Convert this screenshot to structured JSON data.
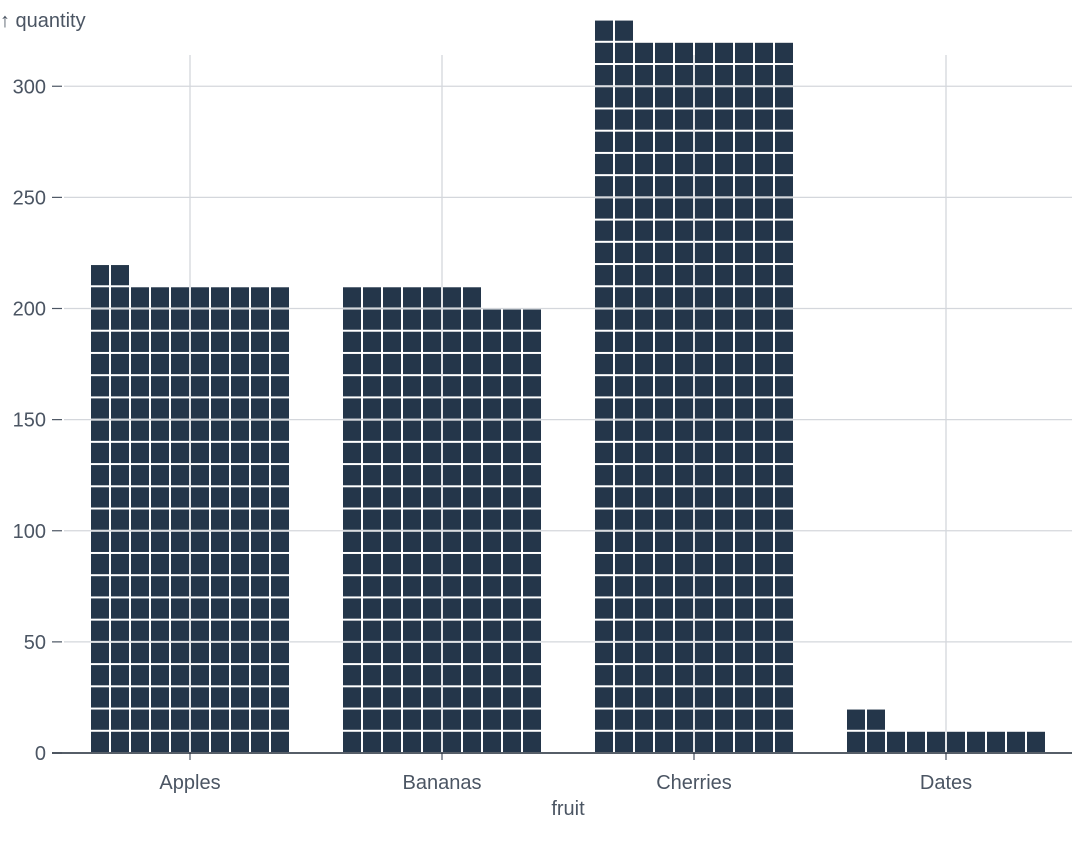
{
  "chart_data": {
    "type": "waffle",
    "xlabel": "fruit",
    "ylabel": "↑ quantity",
    "ylim": [
      0,
      320
    ],
    "yticks": [
      0,
      50,
      100,
      150,
      200,
      250,
      300
    ],
    "cell_unit": 1,
    "cells_per_row": 10,
    "grid": true,
    "categories": [
      "Apples",
      "Bananas",
      "Cherries",
      "Dates"
    ],
    "values": [
      212,
      207,
      322,
      12
    ],
    "colors": {
      "fill": "#24364a",
      "grid": "#d4d7dc",
      "text": "#4b5563",
      "axis": "#1f2937"
    }
  }
}
